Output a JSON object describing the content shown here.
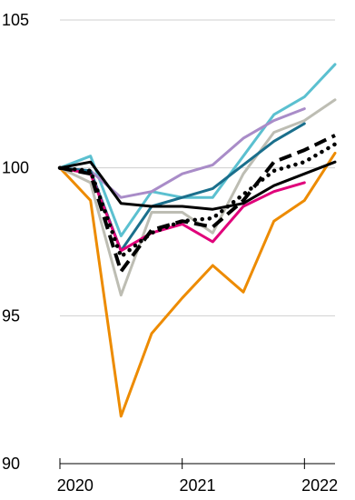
{
  "chart_data": {
    "type": "line",
    "title": "",
    "xlabel": "",
    "ylabel": "",
    "ylim": [
      90,
      105
    ],
    "xlim": [
      0,
      9
    ],
    "yticks": [
      90,
      95,
      100,
      105
    ],
    "xtick_labels": [
      {
        "value": 0.5,
        "label": "2020"
      },
      {
        "value": 4.5,
        "label": "2021"
      },
      {
        "value": 8.5,
        "label": "2022"
      }
    ],
    "x": [
      0,
      1,
      2,
      3,
      4,
      5,
      6,
      7,
      8,
      9
    ],
    "grid": "horizontal",
    "legend": "none",
    "series": [
      {
        "color": "#ED8B00",
        "style": "solid",
        "values": [
          100.0,
          98.9,
          91.6,
          94.4,
          95.6,
          96.7,
          95.8,
          98.2,
          98.9,
          100.5
        ]
      },
      {
        "color": "#BDBDB3",
        "style": "solid",
        "values": [
          100.0,
          99.5,
          95.7,
          98.5,
          98.5,
          97.8,
          99.8,
          101.2,
          101.6,
          102.3
        ]
      },
      {
        "color": "#5BC0D0",
        "style": "solid",
        "values": [
          100.0,
          100.4,
          97.7,
          99.2,
          99.0,
          99.0,
          100.4,
          101.8,
          102.4,
          103.5
        ]
      },
      {
        "color": "#A98CC8",
        "style": "solid",
        "values": [
          100.0,
          99.9,
          99.0,
          99.2,
          99.8,
          100.1,
          101.0,
          101.6,
          102.0,
          null
        ]
      },
      {
        "color": "#1A6F8C",
        "style": "solid",
        "values": [
          100.0,
          99.9,
          97.2,
          98.7,
          99.0,
          99.3,
          100.1,
          100.9,
          101.5,
          null
        ]
      },
      {
        "color": "#E0007A",
        "style": "solid",
        "values": [
          100.0,
          99.8,
          97.2,
          97.8,
          98.1,
          97.5,
          98.7,
          99.2,
          99.5,
          null
        ]
      },
      {
        "color": "#000000",
        "style": "solid",
        "values": [
          100.0,
          100.2,
          98.8,
          98.7,
          98.7,
          98.6,
          98.8,
          99.4,
          99.8,
          100.2
        ]
      },
      {
        "color": "#000000",
        "style": "dashed",
        "values": [
          100.0,
          99.8,
          96.5,
          97.9,
          98.2,
          98.0,
          98.9,
          100.2,
          100.6,
          101.1
        ]
      },
      {
        "color": "#000000",
        "style": "dotted",
        "values": [
          100.0,
          99.9,
          97.0,
          97.8,
          98.2,
          98.3,
          99.1,
          99.9,
          100.2,
          100.8
        ]
      }
    ]
  }
}
